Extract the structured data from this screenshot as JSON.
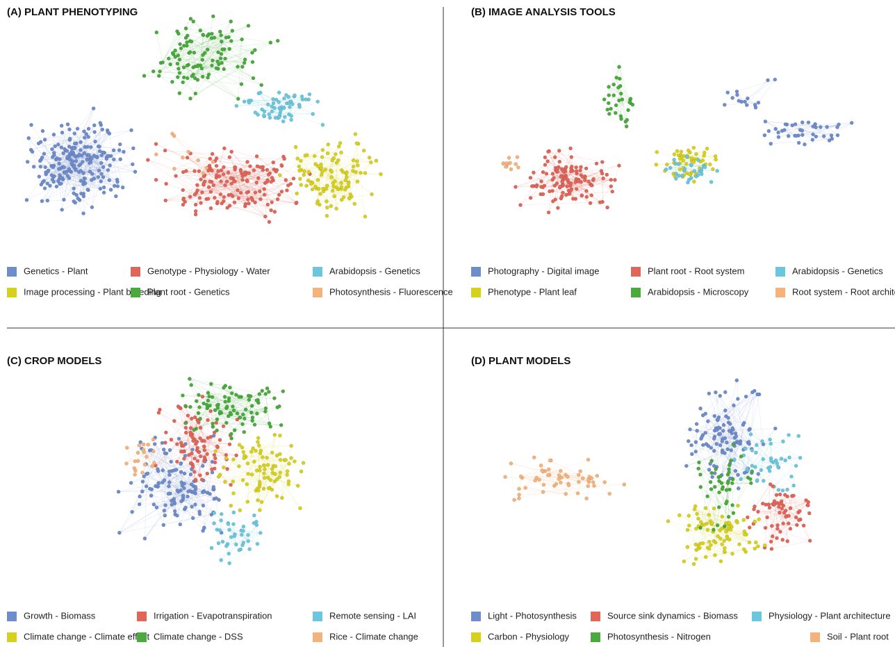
{
  "panels": [
    {
      "title": "(A) PLANT PHENOTYPING",
      "legend": [
        {
          "name": "Genetics - Plant",
          "color": "#6f8ccb"
        },
        {
          "name": "Genotype - Physiology - Water",
          "color": "#e0665a"
        },
        {
          "name": "Arabidopsis - Genetics",
          "color": "#6cc6dc"
        },
        {
          "name": "Image processing - Plant breeding",
          "color": "#d6d11e"
        },
        {
          "name": "Plant root - Genetics",
          "color": "#4aaa3e"
        },
        {
          "name": "Photosynthesis - Fluorescence",
          "color": "#f4b27c"
        }
      ]
    },
    {
      "title": "(B) IMAGE ANALYSIS TOOLS",
      "legend": [
        {
          "name": "Photography - Digital image",
          "color": "#6f8ccb"
        },
        {
          "name": "Plant root - Root system",
          "color": "#e0665a"
        },
        {
          "name": "Arabidopsis - Genetics",
          "color": "#6cc6dc"
        },
        {
          "name": "Phenotype - Plant leaf",
          "color": "#d6d11e"
        },
        {
          "name": "Arabidopsis - Microscopy",
          "color": "#4aaa3e"
        },
        {
          "name": "Root system - Root architecture",
          "color": "#f4b27c"
        }
      ]
    },
    {
      "title": "(C) CROP MODELS",
      "legend": [
        {
          "name": "Growth - Biomass",
          "color": "#6f8ccb"
        },
        {
          "name": "Irrigation - Evapotranspiration",
          "color": "#e0665a"
        },
        {
          "name": "Remote sensing - LAI",
          "color": "#6cc6dc"
        },
        {
          "name": "Climate change - Climate effect",
          "color": "#d6d11e"
        },
        {
          "name": "Climate change - DSS",
          "color": "#4aaa3e"
        },
        {
          "name": "Rice - Climate change",
          "color": "#f4b27c"
        }
      ]
    },
    {
      "title": "(D) PLANT MODELS",
      "legend": [
        {
          "name": "Light - Photosynthesis",
          "color": "#6f8ccb"
        },
        {
          "name": "Source sink dynamics - Biomass",
          "color": "#e0665a"
        },
        {
          "name": "Physiology - Plant architecture",
          "color": "#6cc6dc"
        },
        {
          "name": "Carbon - Physiology",
          "color": "#d6d11e"
        },
        {
          "name": "Photosynthesis - Nitrogen",
          "color": "#4aaa3e"
        },
        {
          "name": "Soil - Plant root",
          "color": "#f4b27c"
        }
      ]
    }
  ]
}
